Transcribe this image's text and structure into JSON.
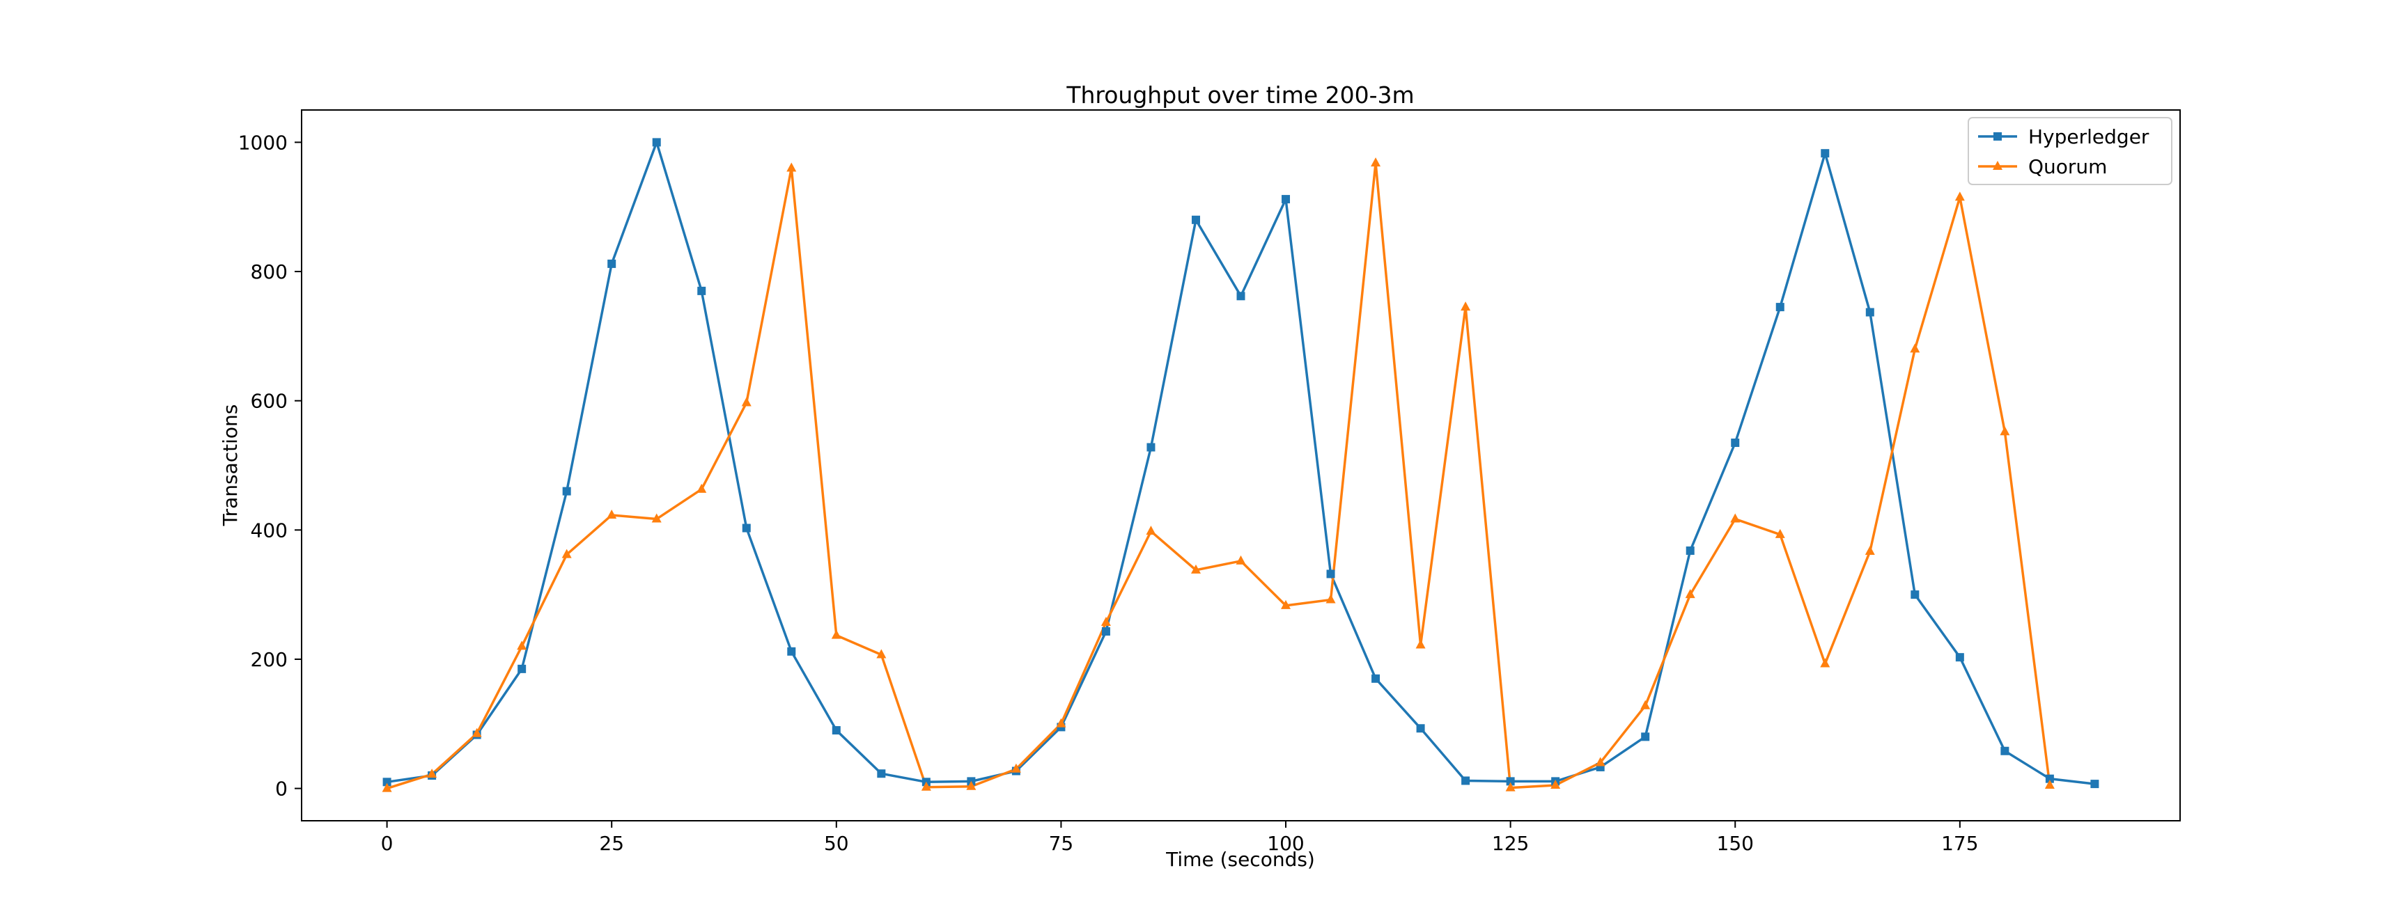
{
  "chart_data": {
    "type": "line",
    "title": "Throughput over time 200-3m",
    "xlabel": "Time (seconds)",
    "ylabel": "Transactions",
    "xlim": [
      -9.5,
      199.5
    ],
    "ylim": [
      -50,
      1050
    ],
    "xticks": [
      0,
      25,
      50,
      75,
      100,
      125,
      150,
      175
    ],
    "yticks": [
      0,
      200,
      400,
      600,
      800,
      1000
    ],
    "grid": false,
    "legend_position": "top-right",
    "x": [
      0,
      5,
      10,
      15,
      20,
      25,
      30,
      35,
      40,
      45,
      50,
      55,
      60,
      65,
      70,
      75,
      80,
      85,
      90,
      95,
      100,
      105,
      110,
      115,
      120,
      125,
      130,
      135,
      140,
      145,
      150,
      155,
      160,
      165,
      170,
      175,
      180,
      185,
      190
    ],
    "series": [
      {
        "name": "Hyperledger",
        "color": "#1f77b4",
        "marker": "square",
        "x": [
          0,
          5,
          10,
          15,
          20,
          25,
          30,
          35,
          40,
          45,
          50,
          55,
          60,
          65,
          70,
          75,
          80,
          85,
          90,
          95,
          100,
          105,
          110,
          115,
          120,
          125,
          130,
          135,
          140,
          145,
          150,
          155,
          160,
          165,
          170,
          175,
          180,
          185,
          190
        ],
        "values": [
          10,
          20,
          83,
          185,
          460,
          812,
          1000,
          770,
          403,
          212,
          90,
          23,
          10,
          11,
          27,
          95,
          243,
          528,
          880,
          762,
          912,
          332,
          170,
          93,
          12,
          11,
          11,
          33,
          80,
          368,
          535,
          745,
          983,
          737,
          300,
          203,
          58,
          15,
          7
        ]
      },
      {
        "name": "Quorum",
        "color": "#ff7f0e",
        "marker": "triangle",
        "x": [
          0,
          5,
          10,
          15,
          20,
          25,
          30,
          35,
          40,
          45,
          50,
          55,
          60,
          65,
          70,
          75,
          80,
          85,
          90,
          95,
          100,
          105,
          110,
          115,
          120,
          125,
          130,
          135,
          140,
          145,
          150,
          155,
          160,
          165,
          170,
          175,
          180,
          185
        ],
        "values": [
          0,
          22,
          85,
          220,
          362,
          423,
          417,
          463,
          597,
          960,
          237,
          207,
          2,
          3,
          30,
          100,
          257,
          398,
          338,
          352,
          283,
          292,
          968,
          222,
          745,
          1,
          5,
          40,
          128,
          300,
          417,
          393,
          193,
          367,
          680,
          915,
          552,
          5
        ]
      }
    ]
  }
}
